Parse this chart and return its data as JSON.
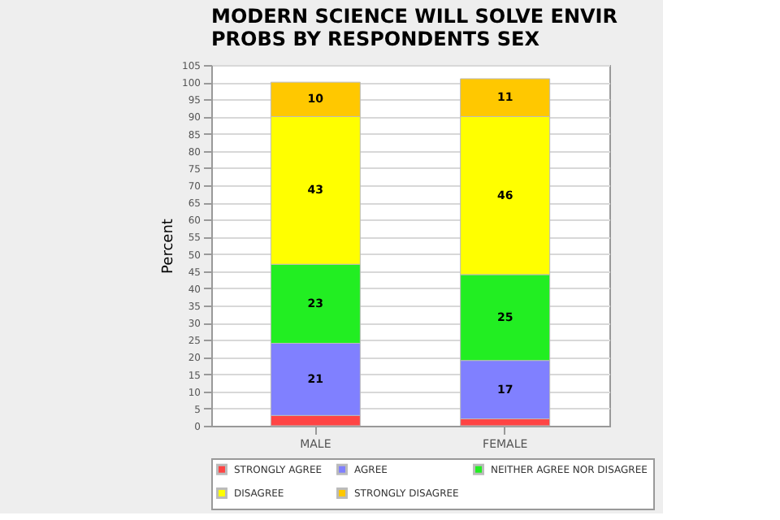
{
  "chart_data": {
    "type": "bar",
    "stacked": true,
    "title": "MODERN SCIENCE WILL SOLVE ENVIR PROBS BY RESPONDENTS SEX",
    "ylabel": "Percent",
    "categories": [
      "MALE",
      "FEMALE"
    ],
    "series": [
      {
        "name": "STRONGLY AGREE",
        "color": "#ff4444",
        "values": [
          3,
          2
        ],
        "value_labels": [
          null,
          null
        ]
      },
      {
        "name": "AGREE",
        "color": "#8080ff",
        "values": [
          21,
          17
        ],
        "value_labels": [
          "21",
          "17"
        ]
      },
      {
        "name": "NEITHER AGREE NOR DISAGREE",
        "color": "#22ee22",
        "values": [
          23,
          25
        ],
        "value_labels": [
          "23",
          "25"
        ]
      },
      {
        "name": "DISAGREE",
        "color": "#ffff00",
        "values": [
          43,
          46
        ],
        "value_labels": [
          "43",
          "46"
        ]
      },
      {
        "name": "STRONGLY DISAGREE",
        "color": "#ffc800",
        "values": [
          10,
          11
        ],
        "value_labels": [
          "10",
          "11"
        ]
      }
    ],
    "ylim": [
      0,
      105
    ],
    "yticks": [
      0,
      5,
      10,
      15,
      20,
      25,
      30,
      35,
      40,
      45,
      50,
      55,
      60,
      65,
      70,
      75,
      80,
      85,
      90,
      95,
      100,
      105
    ],
    "grid": "y",
    "legend": "bottom"
  }
}
